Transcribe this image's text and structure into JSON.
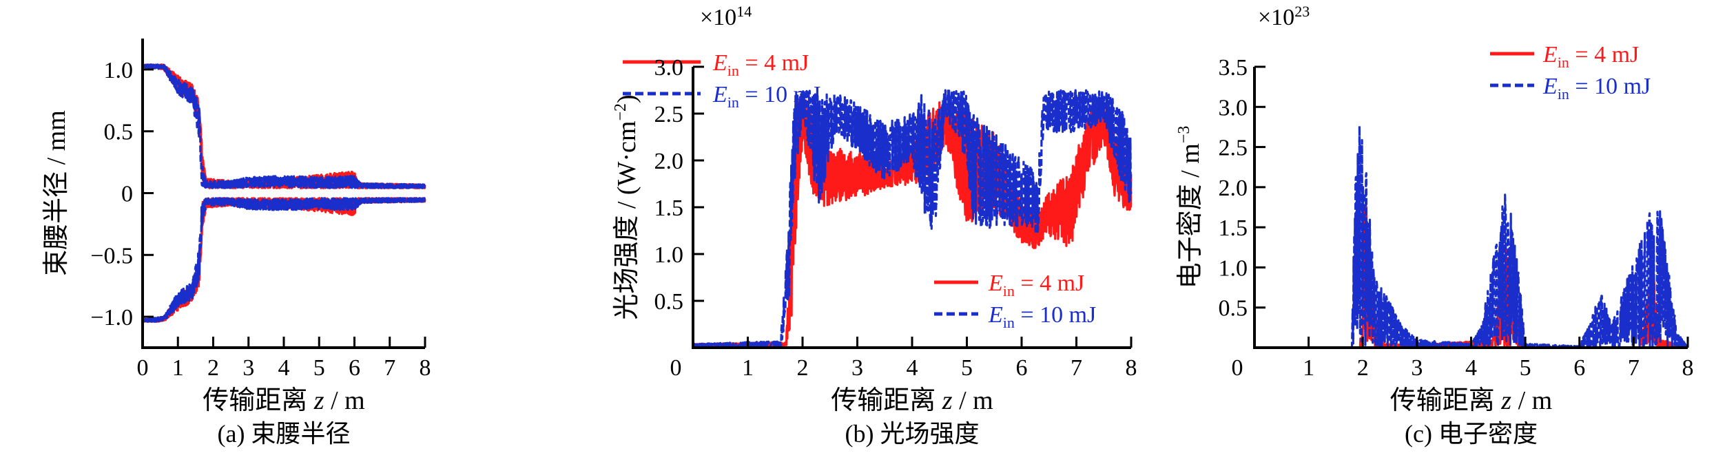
{
  "colors": {
    "series_4mJ": "#ff1a1a",
    "series_10mJ": "#1a2ecc"
  },
  "legend": [
    {
      "symbol": "E",
      "subscript": "in",
      "value": " = 4 mJ",
      "style": "solid"
    },
    {
      "symbol": "E",
      "subscript": "in",
      "value": " = 10 mJ",
      "style": "dashed"
    }
  ],
  "chart_data": [
    {
      "type": "line",
      "caption": "(a) 束腰半径",
      "xlabel": {
        "text": "传输距离 ",
        "var": "z",
        "unit": " / m"
      },
      "ylabel": {
        "text": "束腰半径 / mm",
        "sup": "",
        "tail": ""
      },
      "multiplier": null,
      "xlim": [
        0,
        8
      ],
      "ylim": [
        -1.25,
        1.25
      ],
      "xticks": [
        "0",
        "1",
        "2",
        "3",
        "4",
        "5",
        "6",
        "7",
        "8"
      ],
      "yticks": [
        {
          "v": 1.0,
          "label": "1.0"
        },
        {
          "v": 0.5,
          "label": "0.5"
        },
        {
          "v": 0,
          "label": "0"
        },
        {
          "v": -0.5,
          "label": "−0.5"
        },
        {
          "v": -1.0,
          "label": "−1.0"
        }
      ],
      "legend_position": "top-right",
      "mirror": true,
      "series": [
        {
          "name": "E_in = 4 mJ",
          "envelope": [
            [
              0,
              1.02,
              1.04
            ],
            [
              0.6,
              1.0,
              1.04
            ],
            [
              1.0,
              0.82,
              0.95
            ],
            [
              1.4,
              0.75,
              0.88
            ],
            [
              1.6,
              0.5,
              0.75
            ],
            [
              1.7,
              0.05,
              0.3
            ],
            [
              1.8,
              0.04,
              0.12
            ],
            [
              2.5,
              0.04,
              0.1
            ],
            [
              3,
              0.04,
              0.12
            ],
            [
              4,
              0.04,
              0.12
            ],
            [
              5,
              0.04,
              0.15
            ],
            [
              6,
              0.04,
              0.18
            ],
            [
              6.1,
              0.04,
              0.08
            ],
            [
              8,
              0.04,
              0.07
            ]
          ]
        },
        {
          "name": "E_in = 10 mJ",
          "envelope": [
            [
              0,
              1.02,
              1.04
            ],
            [
              0.6,
              1.0,
              1.04
            ],
            [
              1.0,
              0.8,
              0.92
            ],
            [
              1.4,
              0.72,
              0.86
            ],
            [
              1.6,
              0.45,
              0.72
            ],
            [
              1.68,
              0.05,
              0.25
            ],
            [
              1.8,
              0.04,
              0.1
            ],
            [
              2.5,
              0.04,
              0.1
            ],
            [
              3,
              0.05,
              0.13
            ],
            [
              4,
              0.05,
              0.14
            ],
            [
              5,
              0.04,
              0.13
            ],
            [
              6,
              0.04,
              0.14
            ],
            [
              6.2,
              0.04,
              0.08
            ],
            [
              8,
              0.04,
              0.07
            ]
          ]
        }
      ]
    },
    {
      "type": "line",
      "caption": "(b) 光场强度",
      "xlabel": {
        "text": "传输距离 ",
        "var": "z",
        "unit": " / m"
      },
      "ylabel": {
        "text": "光场强度 / (W·cm",
        "sup": "−2",
        "tail": ")"
      },
      "multiplier": {
        "base": "×10",
        "exp": "14"
      },
      "xlim": [
        0,
        8
      ],
      "ylim": [
        0,
        3.0
      ],
      "xticks": [
        "0",
        "1",
        "2",
        "3",
        "4",
        "5",
        "6",
        "7",
        "8"
      ],
      "yticks": [
        {
          "v": 3.0,
          "label": "3.0"
        },
        {
          "v": 2.5,
          "label": "2.5"
        },
        {
          "v": 2.0,
          "label": "2.0"
        },
        {
          "v": 1.5,
          "label": "1.5"
        },
        {
          "v": 1.0,
          "label": "1.0"
        },
        {
          "v": 0.5,
          "label": "0.5"
        }
      ],
      "legend_position": "bottom-right",
      "mirror": false,
      "series": [
        {
          "name": "E_in = 4 mJ",
          "envelope": [
            [
              0,
              0.02,
              0.04
            ],
            [
              1.7,
              0.0,
              0.06
            ],
            [
              1.8,
              0.3,
              1.4
            ],
            [
              1.9,
              1.4,
              2.7
            ],
            [
              2.0,
              2.2,
              2.7
            ],
            [
              2.2,
              1.6,
              2.5
            ],
            [
              2.4,
              1.5,
              2.15
            ],
            [
              3,
              1.6,
              2.1
            ],
            [
              3.5,
              1.7,
              1.95
            ],
            [
              4,
              1.75,
              2.15
            ],
            [
              4.4,
              1.8,
              2.6
            ],
            [
              4.6,
              2.2,
              2.65
            ],
            [
              5,
              1.3,
              2.5
            ],
            [
              5.5,
              1.5,
              2.3
            ],
            [
              6,
              1.1,
              1.6
            ],
            [
              6.3,
              1.05,
              1.4
            ],
            [
              6.5,
              1.2,
              1.7
            ],
            [
              6.9,
              1.05,
              1.9
            ],
            [
              7.2,
              1.8,
              2.5
            ],
            [
              7.5,
              2.2,
              2.65
            ],
            [
              7.7,
              1.6,
              2.3
            ],
            [
              8,
              1.4,
              1.9
            ]
          ]
        },
        {
          "name": "E_in = 10 mJ",
          "envelope": [
            [
              0,
              0.02,
              0.04
            ],
            [
              1.6,
              0.0,
              0.07
            ],
            [
              1.75,
              0.5,
              1.5
            ],
            [
              1.85,
              1.7,
              2.75
            ],
            [
              2.0,
              2.5,
              2.75
            ],
            [
              2.3,
              1.5,
              2.75
            ],
            [
              2.6,
              2.3,
              2.75
            ],
            [
              3,
              2.1,
              2.6
            ],
            [
              3.5,
              1.75,
              2.4
            ],
            [
              4,
              2.0,
              2.5
            ],
            [
              4.2,
              1.5,
              2.75
            ],
            [
              4.4,
              1.1,
              2.4
            ],
            [
              4.6,
              2.5,
              2.75
            ],
            [
              5,
              2.0,
              2.75
            ],
            [
              5.1,
              1.2,
              2.5
            ],
            [
              5.5,
              1.3,
              2.3
            ],
            [
              6,
              1.3,
              2.0
            ],
            [
              6.3,
              1.2,
              1.9
            ],
            [
              6.4,
              2.3,
              2.75
            ],
            [
              7,
              2.3,
              2.75
            ],
            [
              7.5,
              2.4,
              2.75
            ],
            [
              7.8,
              1.8,
              2.6
            ],
            [
              8,
              1.5,
              2.3
            ]
          ]
        }
      ]
    },
    {
      "type": "line",
      "caption": "(c) 电子密度",
      "xlabel": {
        "text": "传输距离 ",
        "var": "z",
        "unit": " / m"
      },
      "ylabel": {
        "text": "电子密度 / m",
        "sup": "−3",
        "tail": ""
      },
      "multiplier": {
        "base": "×10",
        "exp": "23"
      },
      "xlim": [
        0,
        8
      ],
      "ylim": [
        0,
        3.5
      ],
      "xticks": [
        "0",
        "1",
        "2",
        "3",
        "4",
        "5",
        "6",
        "7",
        "8"
      ],
      "yticks": [
        {
          "v": 3.5,
          "label": "3.5"
        },
        {
          "v": 3.0,
          "label": "3.0"
        },
        {
          "v": 2.5,
          "label": "2.5"
        },
        {
          "v": 2.0,
          "label": "2.0"
        },
        {
          "v": 1.5,
          "label": "1.5"
        },
        {
          "v": 1.0,
          "label": "1.0"
        },
        {
          "v": 0.5,
          "label": "0.5"
        }
      ],
      "legend_position": "top-right",
      "mirror": false,
      "series": [
        {
          "name": "E_in = 4 mJ",
          "envelope": [
            [
              0,
              0,
              0
            ],
            [
              1.95,
              0,
              0
            ],
            [
              2.0,
              0,
              1.1
            ],
            [
              2.05,
              0,
              2.1
            ],
            [
              2.2,
              0,
              0.5
            ],
            [
              2.4,
              0,
              0.05
            ],
            [
              3,
              0,
              0.03
            ],
            [
              4.4,
              0,
              0.1
            ],
            [
              4.65,
              0,
              1.3
            ],
            [
              4.9,
              0,
              0.2
            ],
            [
              5,
              0,
              0
            ],
            [
              7.1,
              0,
              0
            ],
            [
              7.35,
              0,
              1.0
            ],
            [
              7.5,
              0,
              0.1
            ],
            [
              8,
              0,
              0
            ]
          ]
        },
        {
          "name": "E_in = 10 mJ",
          "envelope": [
            [
              0,
              0,
              0
            ],
            [
              1.8,
              0,
              0
            ],
            [
              1.85,
              0,
              2.0
            ],
            [
              1.95,
              0,
              3.05
            ],
            [
              2.05,
              0,
              2.3
            ],
            [
              2.2,
              0,
              1.0
            ],
            [
              2.4,
              0,
              0.7
            ],
            [
              2.7,
              0,
              0.3
            ],
            [
              3,
              0,
              0.1
            ],
            [
              4,
              0,
              0.05
            ],
            [
              4.2,
              0,
              0.3
            ],
            [
              4.5,
              0,
              1.5
            ],
            [
              4.6,
              0,
              2.05
            ],
            [
              4.8,
              0,
              1.5
            ],
            [
              5,
              0,
              0.05
            ],
            [
              6,
              0,
              0.02
            ],
            [
              6.4,
              0,
              0.7
            ],
            [
              6.6,
              0,
              0.3
            ],
            [
              7,
              0,
              1.1
            ],
            [
              7.3,
              0,
              1.75
            ],
            [
              7.5,
              0,
              1.7
            ],
            [
              7.8,
              0,
              0.2
            ],
            [
              8,
              0,
              0
            ]
          ]
        }
      ]
    }
  ]
}
